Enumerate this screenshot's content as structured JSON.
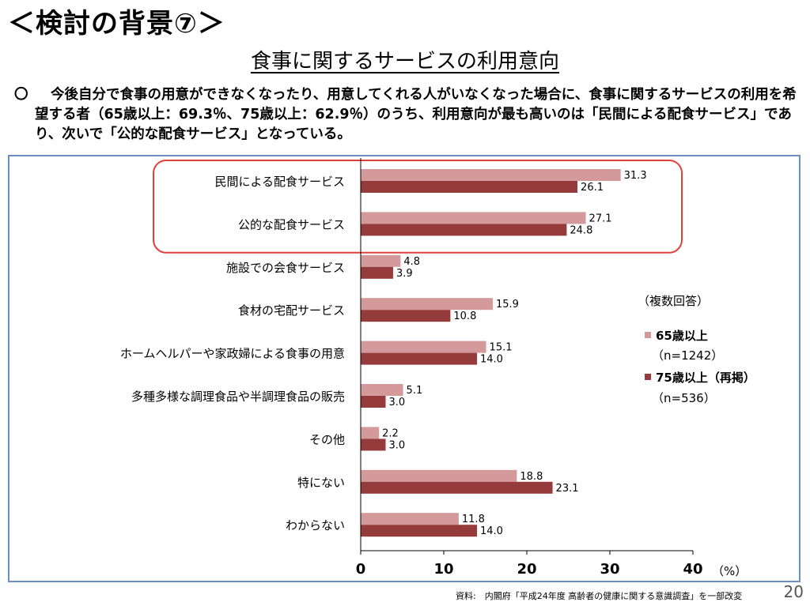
{
  "slide": {
    "title": "＜検討の背景⑦＞",
    "page_number": "20",
    "source": "資料:　内閣府「平成24年度 高齢者の健康に関する意識調査」を一部改変"
  },
  "summary": {
    "bullet": "〇",
    "text": "今後自分で食事の用意ができなくなったり、用意してくれる人がいなくなった場合に、食事に関するサービスの利用を希望する者（65歳以上：69.3％、75歳以上：62.9％）のうち、利用意向が最も高いのは「民間による配食サービス」であり、次いで「公的な配食サービス」となっている。"
  },
  "chart_data": {
    "type": "bar",
    "orientation": "horizontal",
    "title": "食事に関するサービスの利用意向",
    "categories": [
      "民間による配食サービス",
      "公的な配食サービス",
      "施設での会食サービス",
      "食材の宅配サービス",
      "ホームヘルパーや家政婦による食事の用意",
      "多種多様な調理食品や半調理食品の販売",
      "その他",
      "特にない",
      "わからない"
    ],
    "series": [
      {
        "name": "65歳以上",
        "sample": "（n=1242）",
        "color": "#d49a9b",
        "values": [
          31.3,
          27.1,
          4.8,
          15.9,
          15.1,
          5.1,
          2.2,
          18.8,
          11.8
        ],
        "labels": [
          "31.3",
          "27.1",
          "4.8",
          "15.9",
          "15.1",
          "5.1",
          "2.2",
          "18.8",
          "11.8"
        ]
      },
      {
        "name": "75歳以上（再掲）",
        "sample": "（n=536）",
        "color": "#953b3b",
        "values": [
          26.1,
          24.8,
          3.9,
          10.8,
          14.0,
          3.0,
          3.0,
          23.1,
          14.0
        ],
        "labels": [
          "26.1",
          "24.8",
          "3.9",
          "10.8",
          "14.0",
          "3.0",
          "3.0",
          "23.1",
          "14.0"
        ]
      }
    ],
    "xlim": [
      0,
      40
    ],
    "xticks": [
      0,
      10,
      20,
      30,
      40
    ],
    "xtick_labels": [
      "0",
      "10",
      "20",
      "30",
      "40"
    ],
    "xlabel": "（%）",
    "legend_title": "（複数回答）",
    "legend_position": "right",
    "highlight": {
      "categories": [
        0,
        1
      ],
      "color": "#e0403a"
    },
    "grid": false
  }
}
